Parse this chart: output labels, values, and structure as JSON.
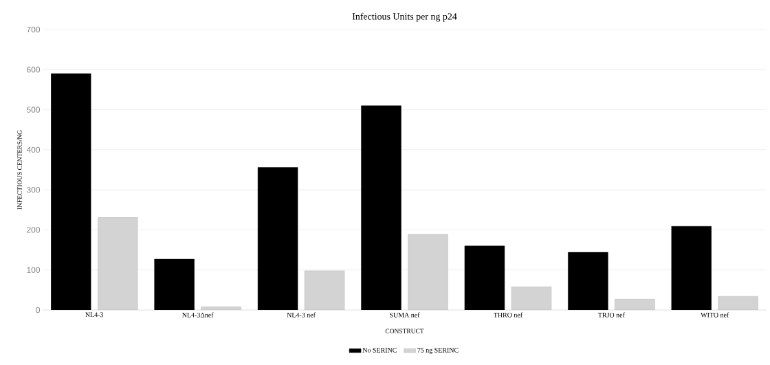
{
  "chart_data": {
    "type": "bar",
    "title": "Infectious Units per ng p24",
    "xlabel": "CONSTRUCT",
    "ylabel": "INFECTIOUS CENTERS/NG",
    "categories": [
      "NL4-3",
      "NL4-3Δnef",
      "NL4-3 nef",
      "SUMA nef",
      "THRO nef",
      "TRJO nef",
      "WITO nef"
    ],
    "series": [
      {
        "name": "No SERINC",
        "color": "#000000",
        "values": [
          590,
          127,
          356,
          510,
          160,
          144,
          209
        ]
      },
      {
        "name": "75 ng SERINC",
        "color": "#d3d3d3",
        "values": [
          231,
          8,
          98,
          189,
          58,
          27,
          34
        ]
      }
    ],
    "ylim": [
      0,
      700
    ],
    "yticks": [
      0,
      100,
      200,
      300,
      400,
      500,
      600,
      700
    ],
    "grid": "y",
    "legend": "bottom"
  }
}
